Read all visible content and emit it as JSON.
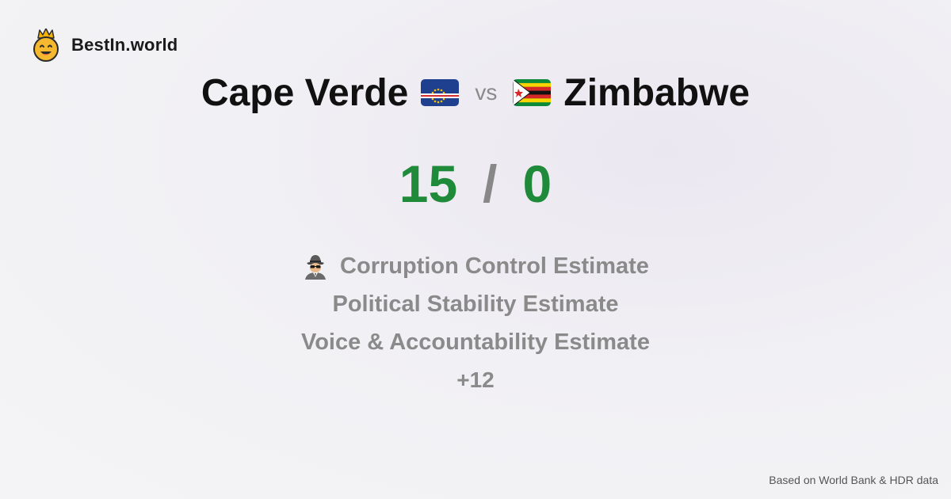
{
  "brand": {
    "name": "BestIn.world",
    "logo_icon": "crown-smiley-icon"
  },
  "comparison": {
    "left": {
      "name": "Cape Verde",
      "flag_icon": "cape-verde-flag-icon",
      "score": "15"
    },
    "vs_label": "vs",
    "right": {
      "name": "Zimbabwe",
      "flag_icon": "zimbabwe-flag-icon",
      "score": "0"
    },
    "score_separator": "/"
  },
  "metrics": {
    "items": [
      {
        "label": "Corruption Control Estimate",
        "icon": "spy-icon"
      },
      {
        "label": "Political Stability Estimate"
      },
      {
        "label": "Voice & Accountability Estimate"
      }
    ],
    "more_label": "+12"
  },
  "footer": {
    "source": "Based on World Bank & HDR data"
  },
  "colors": {
    "score_green": "#1e8a3a",
    "muted_gray": "#8a8a8a",
    "text_dark": "#111111"
  }
}
